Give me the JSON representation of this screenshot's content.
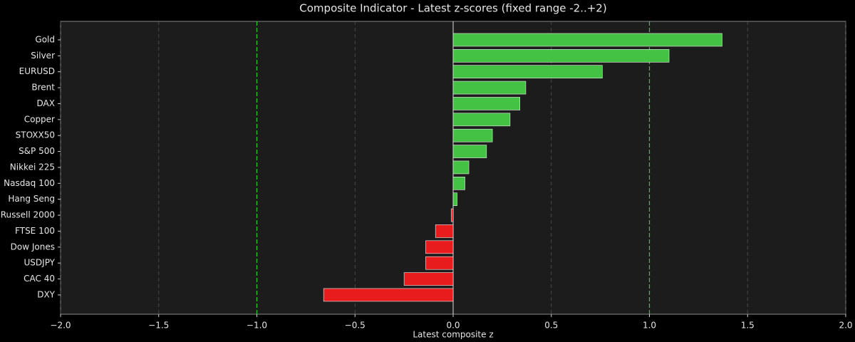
{
  "chart_data": {
    "type": "barh",
    "title": "Composite Indicator - Latest z-scores (fixed range -2..+2)",
    "x_label": "Latest composite z",
    "categories": [
      "Gold",
      "Silver",
      "EURUSD",
      "Brent",
      "DAX",
      "Copper",
      "STOXX50",
      "S&P 500",
      "Nikkei 225",
      "Nasdaq 100",
      "Hang Seng",
      "Russell 2000",
      "FTSE 100",
      "Dow Jones",
      "USDJPY",
      "CAC 40",
      "DXY"
    ],
    "values": [
      1.37,
      1.1,
      0.76,
      0.37,
      0.34,
      0.29,
      0.2,
      0.17,
      0.08,
      0.06,
      0.02,
      -0.01,
      -0.09,
      -0.14,
      -0.14,
      -0.25,
      -0.66
    ],
    "positive_color": "#44c244",
    "negative_color": "#e81c1c",
    "xlim": [
      -2,
      2
    ],
    "xticks": [
      {
        "value": -2,
        "label": "−2.0"
      },
      {
        "value": -1.5,
        "label": "−1.5"
      },
      {
        "value": -1,
        "label": "−1.0"
      },
      {
        "value": -0.5,
        "label": "−0.5"
      },
      {
        "value": 0,
        "label": "0.0"
      },
      {
        "value": 0.5,
        "label": "0.5"
      },
      {
        "value": 1,
        "label": "1.0"
      },
      {
        "value": 1.5,
        "label": "1.5"
      },
      {
        "value": 2,
        "label": "2.0"
      }
    ],
    "reference_lines": [
      -1,
      1
    ],
    "reference_color": "#2ecc2e",
    "grid": true
  }
}
